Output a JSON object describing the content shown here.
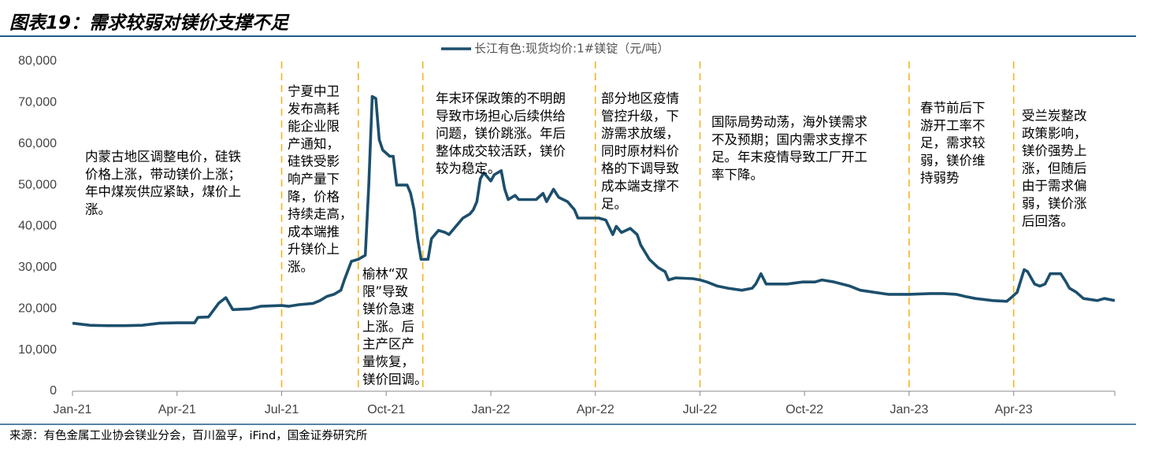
{
  "chart_data": {
    "type": "line",
    "title": "图表19：需求较弱对镁价支撑不足",
    "source": "来源：有色金属工业协会镁业分会，百川盈孚，iFind，国金证券研究所",
    "x": [
      0,
      0.5,
      1,
      1.5,
      2,
      2.5,
      3,
      3.5,
      3.6,
      3.9,
      4.2,
      4.4,
      4.6,
      5.1,
      5.4,
      6,
      6.2,
      6.5,
      6.9,
      7.1,
      7.3,
      7.5,
      7.7,
      7.8,
      8,
      8.2,
      8.4,
      8.5,
      8.6,
      8.7,
      8.8,
      8.9,
      9.1,
      9.2,
      9.3,
      9.6,
      9.7,
      9.8,
      9.9,
      10,
      10.2,
      10.3,
      10.5,
      10.7,
      10.8,
      11,
      11.1,
      11.2,
      11.4,
      11.5,
      11.6,
      11.7,
      11.8,
      11.9,
      12,
      12.1,
      12.3,
      12.4,
      12.5,
      12.7,
      12.8,
      13.3,
      13.5,
      13.6,
      13.8,
      13.95,
      14.2,
      14.4,
      14.5,
      15.1,
      15.3,
      15.5,
      15.6,
      15.75,
      16,
      16.2,
      16.3,
      16.55,
      16.8,
      17,
      17.1,
      17.3,
      17.8,
      18,
      18.2,
      18.5,
      18.8,
      19.2,
      19.5,
      19.6,
      19.75,
      19.9,
      20.5,
      20.95,
      21.3,
      21.5,
      21.85,
      22.3,
      22.6,
      23,
      23.4,
      24,
      24.6,
      25,
      25.35,
      25.6,
      25.9,
      26.4,
      26.8,
      26.9,
      27.1,
      27.3,
      27.4,
      27.6,
      27.75,
      27.9,
      28.05,
      28.35,
      28.5,
      28.6,
      28.8,
      29,
      29.4,
      29.6,
      29.9
    ],
    "series": [
      {
        "name": "长江有色:现货均价:1#镁锭（元/吨）",
        "color": "#1c4f6c",
        "values": [
          16500,
          16000,
          15900,
          15900,
          16000,
          16500,
          16600,
          16600,
          17900,
          18000,
          21400,
          22700,
          19800,
          20000,
          20600,
          20800,
          20600,
          21000,
          21300,
          22000,
          23000,
          23500,
          24500,
          27000,
          31500,
          32000,
          33000,
          50000,
          71500,
          71000,
          61000,
          58500,
          57000,
          57000,
          50000,
          50000,
          48000,
          44000,
          37000,
          32000,
          32000,
          37000,
          39000,
          38500,
          38000,
          40000,
          41000,
          42000,
          43000,
          44000,
          46000,
          51500,
          53000,
          52000,
          51000,
          52500,
          53500,
          49000,
          46500,
          47500,
          46500,
          46500,
          48000,
          46000,
          49000,
          47000,
          46000,
          44000,
          42000,
          42000,
          41500,
          38000,
          40000,
          38500,
          39500,
          38000,
          35500,
          32000,
          30000,
          29000,
          27000,
          27500,
          27300,
          27000,
          26500,
          25500,
          25000,
          24500,
          25000,
          26000,
          28500,
          26000,
          26000,
          26500,
          26500,
          27000,
          26500,
          25500,
          24500,
          24000,
          23500,
          23500,
          23700,
          23700,
          23500,
          23000,
          22500,
          22000,
          21800,
          22500,
          24000,
          29500,
          29000,
          26000,
          25500,
          26000,
          28500,
          28500,
          26500,
          25000,
          24000,
          22500,
          22000,
          22500,
          22000
        ]
      }
    ],
    "xlim": [
      0,
      29.9
    ],
    "xticks": [
      {
        "value": 0,
        "label": "Jan-21"
      },
      {
        "value": 3,
        "label": "Apr-21"
      },
      {
        "value": 6,
        "label": "Jul-21"
      },
      {
        "value": 9,
        "label": "Oct-21"
      },
      {
        "value": 12,
        "label": "Jan-22"
      },
      {
        "value": 15,
        "label": "Apr-22"
      },
      {
        "value": 18,
        "label": "Jul-22"
      },
      {
        "value": 21,
        "label": "Oct-22"
      },
      {
        "value": 24,
        "label": "Jan-23"
      },
      {
        "value": 27,
        "label": "Apr-23"
      }
    ],
    "ylim": [
      0,
      80000
    ],
    "yticks": [
      0,
      {
        "value": 10000,
        "label": "10,000"
      },
      {
        "value": 20000,
        "label": "20,000"
      },
      {
        "value": 30000,
        "label": "30,000"
      },
      {
        "value": 40000,
        "label": "40,000"
      },
      {
        "value": 50000,
        "label": "50,000"
      },
      {
        "value": 60000,
        "label": "60,000"
      },
      {
        "value": 70000,
        "label": "70,000"
      },
      {
        "value": 80000,
        "label": "80,000"
      }
    ],
    "grid": false,
    "event_lines": [
      6,
      8.2,
      10.05,
      15,
      18,
      24,
      27
    ],
    "event_line_color": "#f5b324",
    "annotations": [
      [
        "内蒙古地区调整电价，硅铁",
        "价格上涨，带动镁价上涨；",
        "年中煤炭供应紧缺，煤价上",
        "涨。"
      ],
      [
        "宁夏中卫",
        "发布高耗",
        "能企业限",
        "产通知，",
        "硅铁受影",
        "响产量下",
        "降，价格",
        "持续走高，",
        "成本端推",
        "升镁价上",
        "涨。"
      ],
      [
        "榆林“双",
        "限”导致",
        "镁价急速",
        "上涨。后",
        "主产区产",
        "量恢复，",
        "镁价回调。"
      ],
      [
        "年末环保政策的不明朗",
        "导致市场担心后续供给",
        "问题，镁价跳涨。年后",
        "整体成交较活跃，镁价",
        "较为稳定。"
      ],
      [
        "部分地区疫情",
        "管控升级，下",
        "游需求放缓，",
        "同时原材料价",
        "格的下调导致",
        "成本端支撑不",
        "足。"
      ],
      [
        "国际局势动荡，海外镁需求",
        "不及预期；国内需求支撑不",
        "足。年末疫情导致工厂开工",
        "率下降。"
      ],
      [
        "春节前后下",
        "游开工率不",
        "足，需求较",
        "弱，镁价维",
        "持弱势"
      ],
      [
        "受兰炭整改",
        "政策影响，",
        "镁价强势上",
        "涨，但随后",
        "由于需求偏",
        "弱，镁价涨",
        "后回落。"
      ]
    ]
  }
}
